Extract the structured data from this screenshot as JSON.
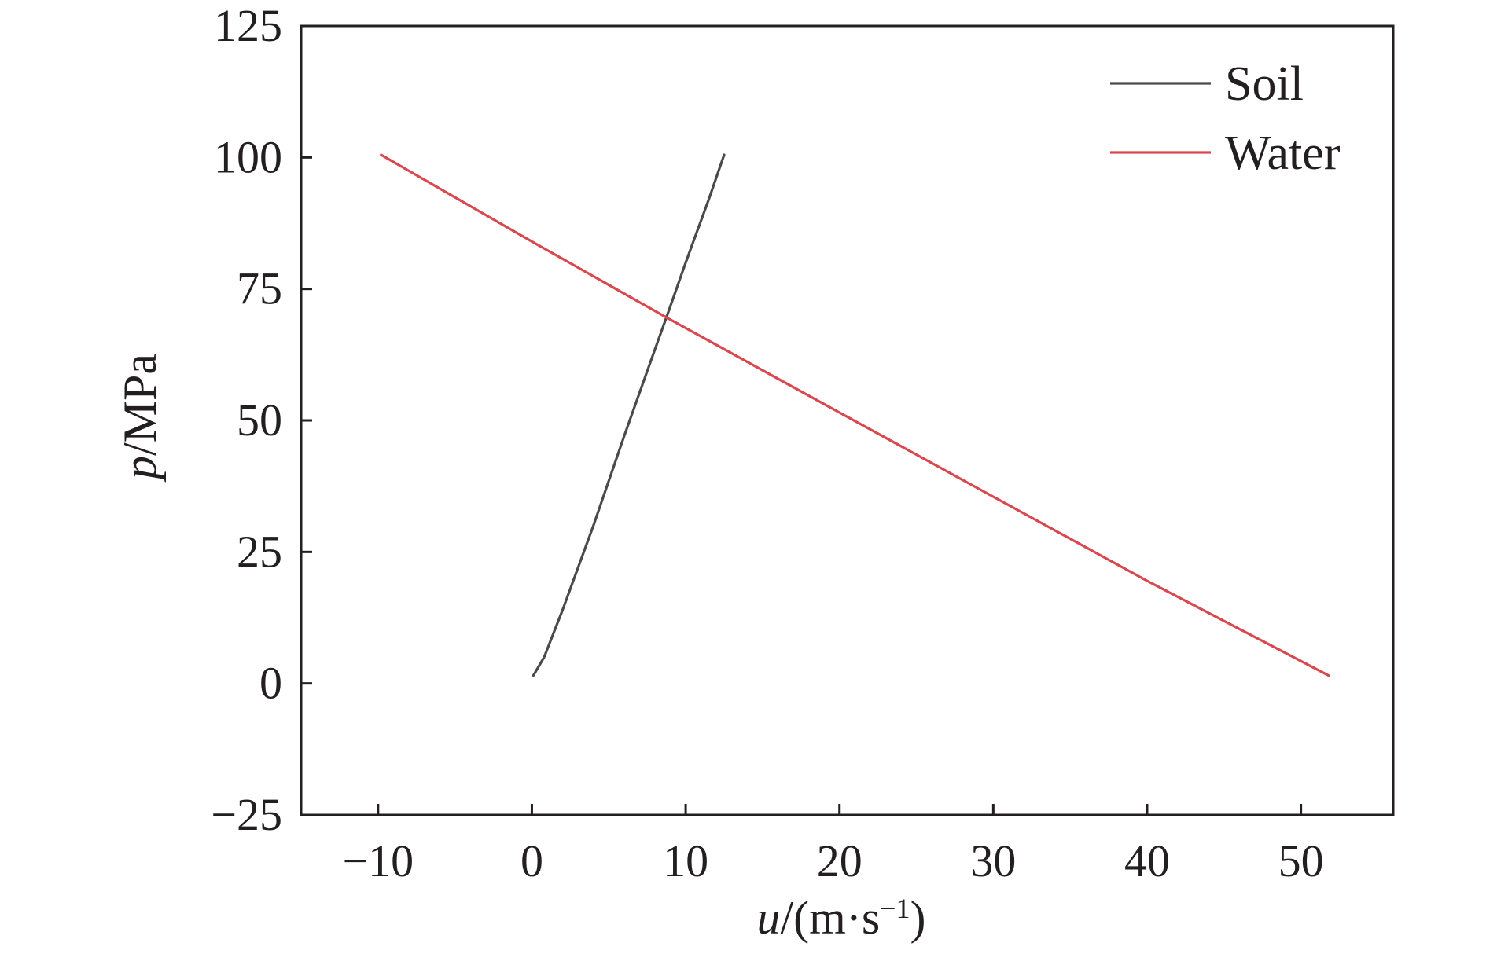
{
  "chart_data": {
    "type": "line",
    "title": "",
    "xlabel": {
      "var": "u",
      "unit_open": "/(m·s",
      "sup": "−1",
      "unit_close": ")"
    },
    "ylabel": {
      "var": "p",
      "unit": "/MPa"
    },
    "xlim": [
      -15,
      56
    ],
    "ylim": [
      -25,
      125
    ],
    "xticks": [
      -10,
      0,
      10,
      20,
      30,
      40,
      50
    ],
    "xtick_labels": [
      "−10",
      "0",
      "10",
      "20",
      "30",
      "40",
      "50"
    ],
    "yticks": [
      -25,
      0,
      25,
      50,
      75,
      100,
      125
    ],
    "ytick_labels": [
      "−25",
      "0",
      "25",
      "50",
      "75",
      "100",
      "125"
    ],
    "grid": false,
    "legend": "top-right",
    "series": [
      {
        "name": "Soil",
        "color": "#4a4a4a",
        "x": [
          0.1,
          0.8,
          2.0,
          4.0,
          6.0,
          8.0,
          8.8,
          10.0,
          11.5,
          12.5
        ],
        "y": [
          1.5,
          5.0,
          14.0,
          30.0,
          47.0,
          63.5,
          70.0,
          80.0,
          92.0,
          100.5
        ]
      },
      {
        "name": "Water",
        "color": "#d9474f",
        "x": [
          -9.8,
          0.0,
          8.8,
          20.0,
          30.0,
          40.0,
          51.8
        ],
        "y": [
          100.5,
          84.0,
          69.5,
          51.5,
          35.5,
          19.5,
          1.5
        ]
      }
    ]
  }
}
